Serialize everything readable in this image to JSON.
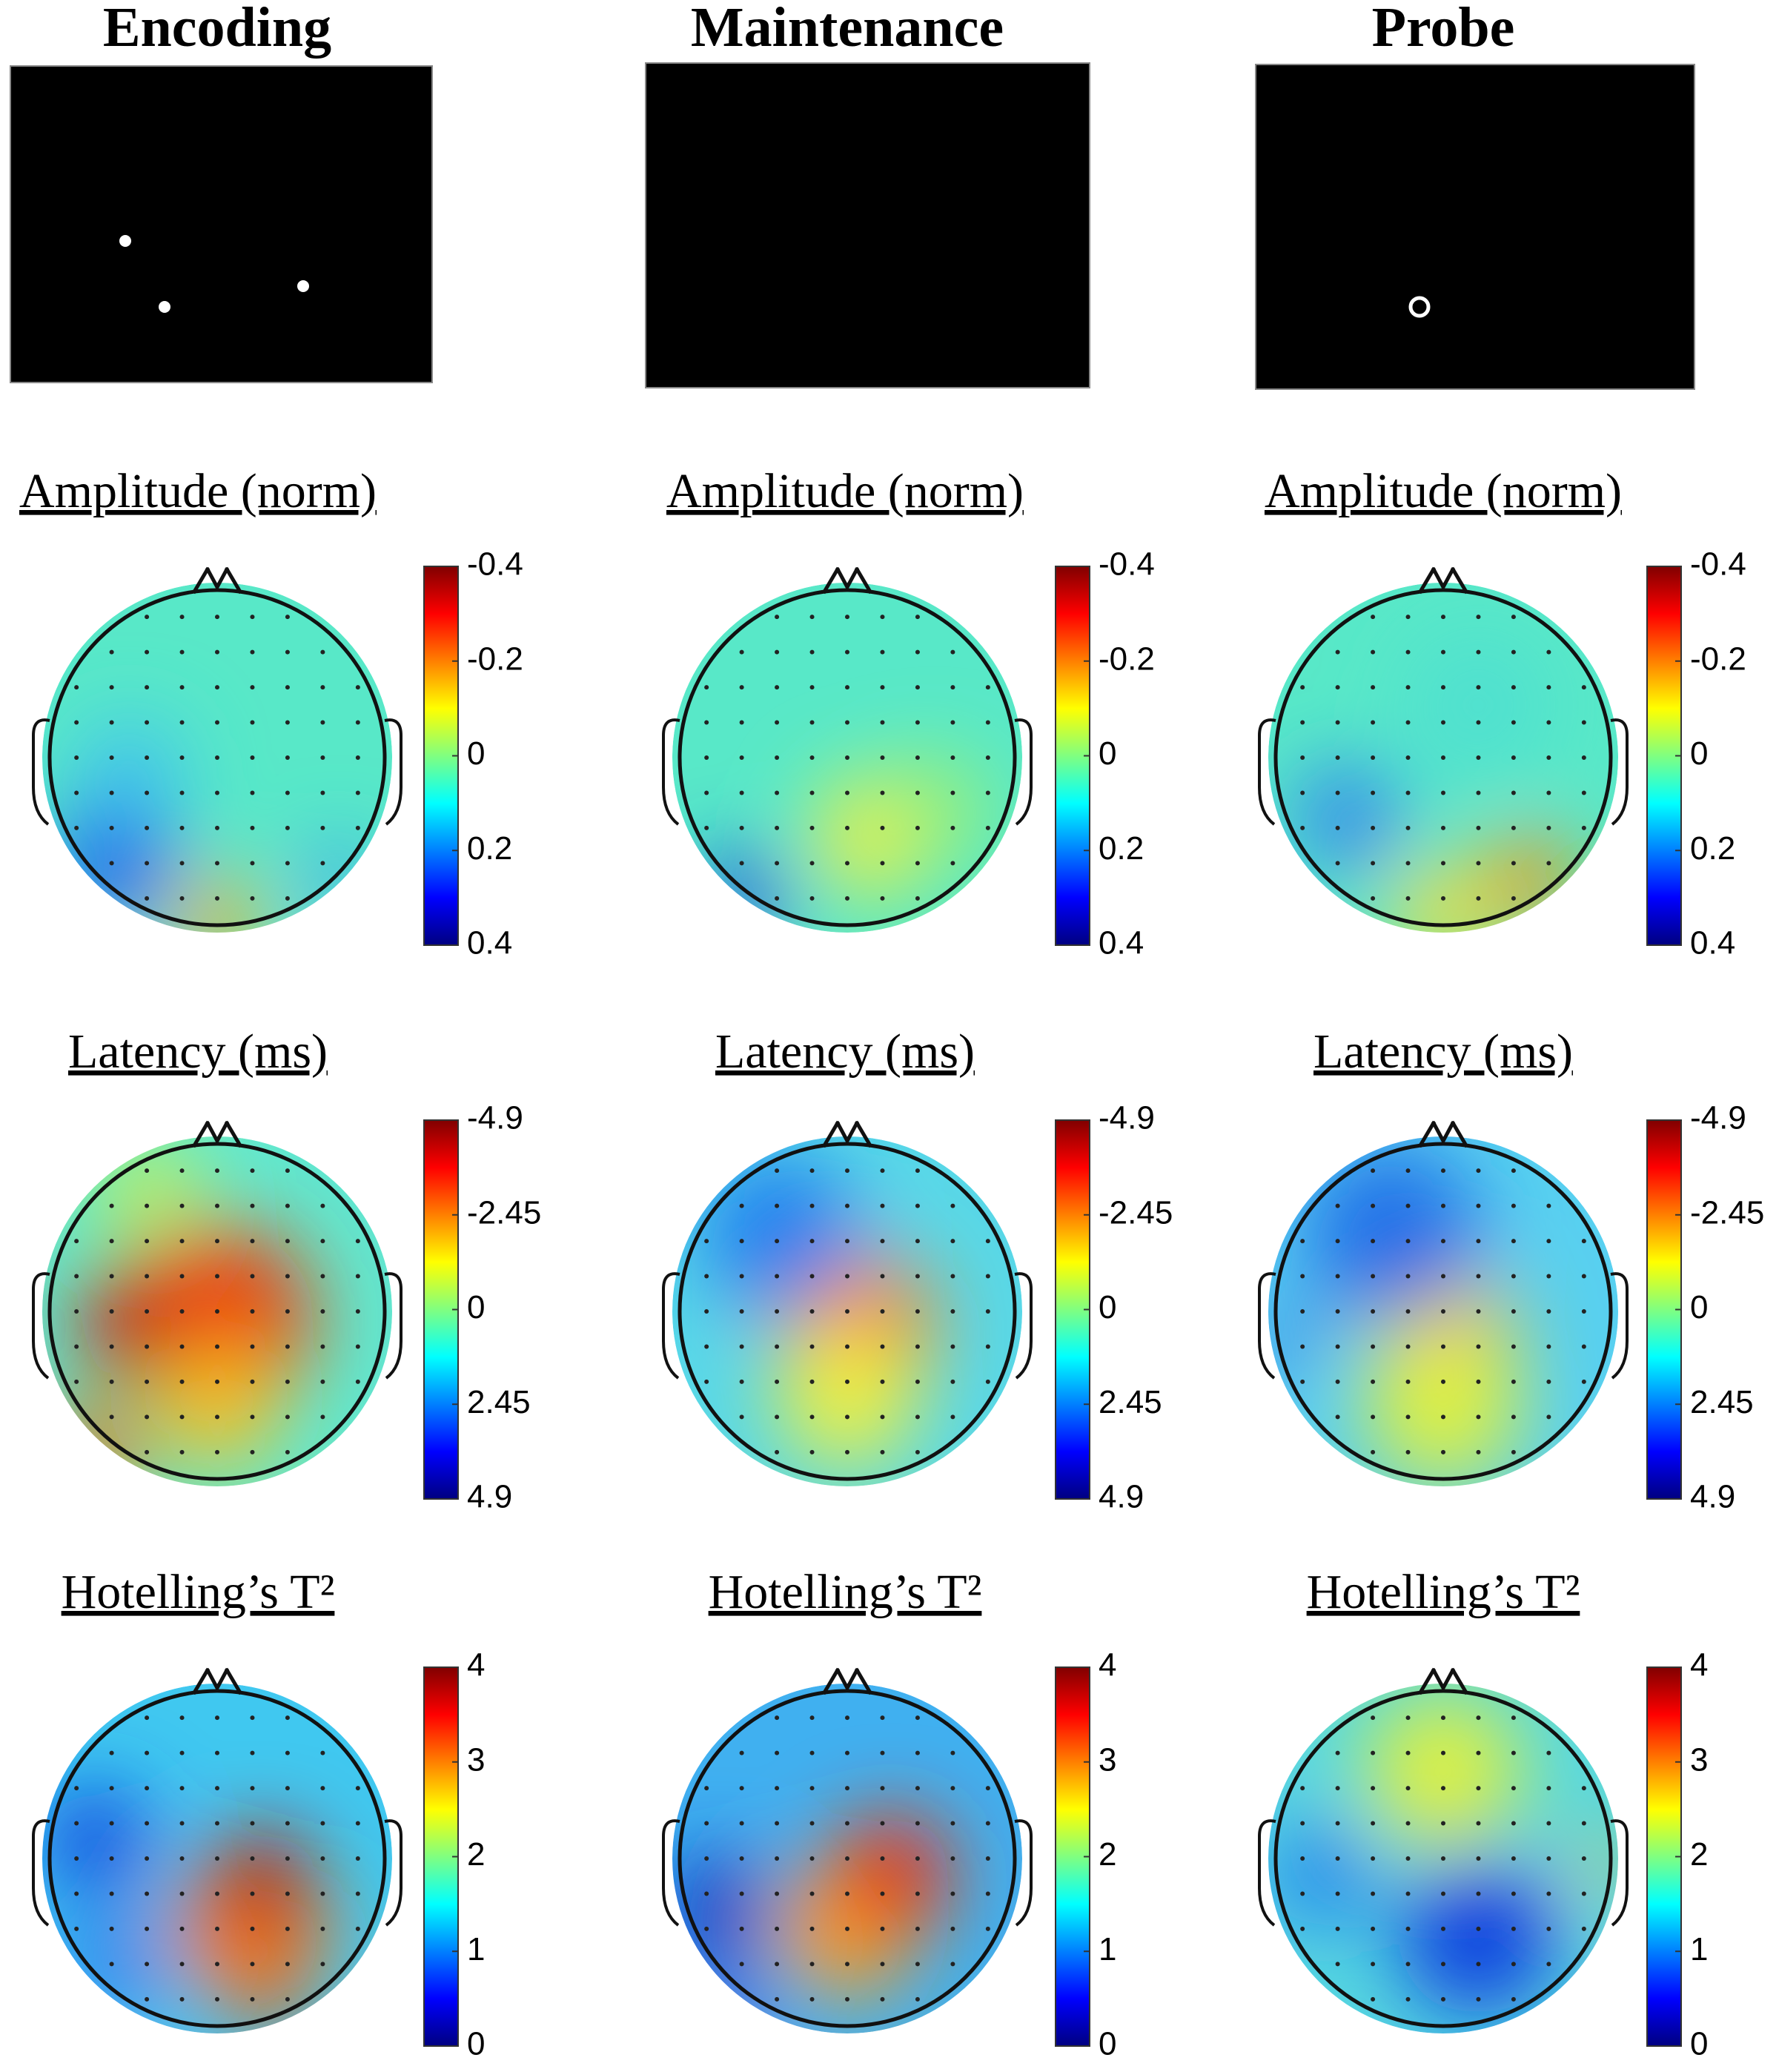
{
  "columns": [
    {
      "title": "Encoding"
    },
    {
      "title": "Maintenance"
    },
    {
      "title": "Probe"
    }
  ],
  "rows": [
    {
      "title": "Amplitude (norm)",
      "ylim": [
        -0.4,
        0.4
      ],
      "reversed": true,
      "yticks": [
        -0.4,
        -0.2,
        0,
        0.2,
        0.4
      ]
    },
    {
      "title": "Latency (ms)",
      "ylim": [
        -4.9,
        4.9
      ],
      "reversed": true,
      "yticks": [
        -4.9,
        -2.45,
        0,
        2.45,
        4.9
      ]
    },
    {
      "title": "Hotelling’s T²",
      "ylim": [
        0,
        4
      ],
      "reversed": false,
      "yticks": [
        0,
        1,
        2,
        3,
        4
      ]
    }
  ]
}
